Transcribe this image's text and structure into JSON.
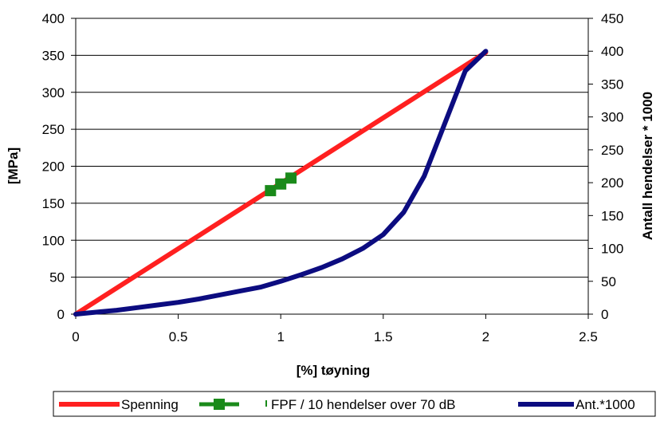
{
  "chart_data": {
    "type": "line",
    "title": "",
    "xlabel": "[%] tøyning",
    "ylabel": "[MPa]",
    "y2label": "Antall hendelser * 1000",
    "xlim": [
      0,
      2.5
    ],
    "ylim": [
      0,
      400
    ],
    "y2lim": [
      0,
      450
    ],
    "x_ticks": [
      "0",
      "0.5",
      "1",
      "1.5",
      "2",
      "2.5"
    ],
    "y_ticks": [
      "0",
      "50",
      "100",
      "150",
      "200",
      "250",
      "300",
      "350",
      "400"
    ],
    "y2_ticks": [
      "0",
      "50",
      "100",
      "150",
      "200",
      "250",
      "300",
      "350",
      "400",
      "450"
    ],
    "grid": "horizontal",
    "legend_position": "bottom",
    "series": [
      {
        "name": "Spenning",
        "axis": "left",
        "color": "#ff2020",
        "style": "line",
        "points": [
          [
            0,
            0
          ],
          [
            2.0,
            354
          ]
        ]
      },
      {
        "name": "FPF / 10 hendelser over 70 dB",
        "axis": "left",
        "color": "#1a8a1a",
        "style": "markers",
        "points": [
          [
            0.95,
            167
          ],
          [
            1.0,
            176
          ],
          [
            1.05,
            184
          ]
        ]
      },
      {
        "name": "Ant.*1000",
        "axis": "right",
        "color": "#0c0c80",
        "style": "line",
        "points": [
          [
            0,
            0
          ],
          [
            0.1,
            3
          ],
          [
            0.2,
            6
          ],
          [
            0.3,
            10
          ],
          [
            0.4,
            14
          ],
          [
            0.5,
            18
          ],
          [
            0.6,
            23
          ],
          [
            0.7,
            29
          ],
          [
            0.8,
            35
          ],
          [
            0.9,
            41
          ],
          [
            1.0,
            50
          ],
          [
            1.1,
            60
          ],
          [
            1.2,
            71
          ],
          [
            1.3,
            84
          ],
          [
            1.4,
            100
          ],
          [
            1.5,
            121
          ],
          [
            1.6,
            155
          ],
          [
            1.7,
            210
          ],
          [
            1.8,
            290
          ],
          [
            1.9,
            370
          ],
          [
            2.0,
            400
          ]
        ]
      }
    ]
  }
}
